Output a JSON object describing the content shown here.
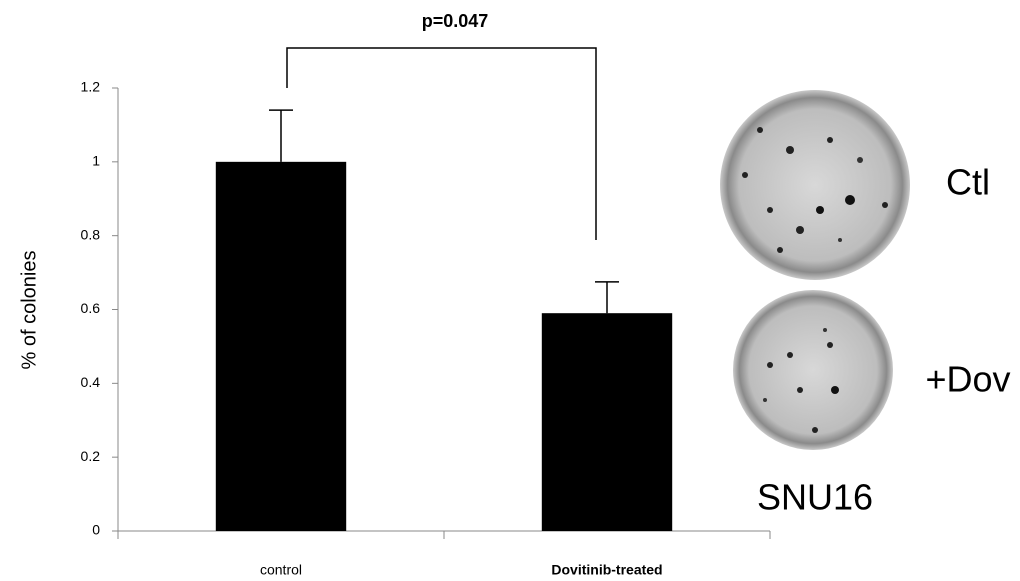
{
  "chart_data": {
    "type": "bar",
    "y_label": "% of colonies",
    "annotation": "p=0.047",
    "categories": [
      "control",
      "Dovitinib-treated"
    ],
    "values": [
      1.0,
      0.59
    ],
    "errors": [
      0.14,
      0.085
    ],
    "color": "#000000",
    "ylim": [
      0,
      1.2
    ],
    "yticks": [
      0,
      0.2,
      0.4,
      0.6,
      0.8,
      1,
      1.2
    ],
    "image_labels": [
      "Ctl",
      "+Dov",
      "SNU16"
    ]
  }
}
